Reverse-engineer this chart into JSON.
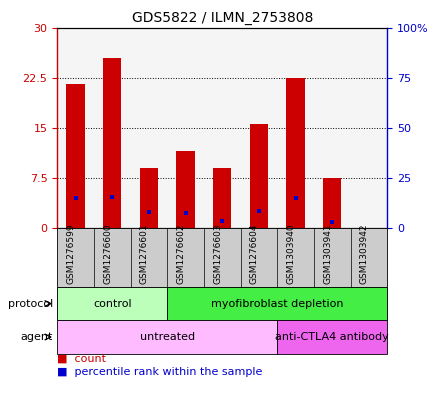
{
  "title": "GDS5822 / ILMN_2753808",
  "samples": [
    "GSM1276599",
    "GSM1276600",
    "GSM1276601",
    "GSM1276602",
    "GSM1276603",
    "GSM1276604",
    "GSM1303940",
    "GSM1303941",
    "GSM1303942"
  ],
  "counts": [
    21.5,
    25.5,
    9.0,
    11.5,
    9.0,
    15.5,
    22.5,
    7.5,
    0.0
  ],
  "percentiles": [
    15.0,
    15.5,
    8.0,
    7.5,
    3.5,
    8.5,
    15.0,
    3.0,
    0.0
  ],
  "ylim_left": [
    0,
    30
  ],
  "ylim_right": [
    0,
    100
  ],
  "yticks_left": [
    0,
    7.5,
    15,
    22.5,
    30
  ],
  "ytick_labels_left": [
    "0",
    "7.5",
    "15",
    "22.5",
    "30"
  ],
  "yticks_right": [
    0,
    25,
    50,
    75,
    100
  ],
  "ytick_labels_right": [
    "0",
    "25",
    "50",
    "75",
    "100%"
  ],
  "gridlines": [
    7.5,
    15,
    22.5
  ],
  "bar_color": "#cc0000",
  "percentile_color": "#0000cc",
  "bar_width": 0.5,
  "protocol_groups": [
    {
      "label": "control",
      "start": 0,
      "end": 3,
      "color": "#bbffbb"
    },
    {
      "label": "myofibroblast depletion",
      "start": 3,
      "end": 9,
      "color": "#44ee44"
    }
  ],
  "agent_groups": [
    {
      "label": "untreated",
      "start": 0,
      "end": 6,
      "color": "#ffbbff"
    },
    {
      "label": "anti-CTLA4 antibody",
      "start": 6,
      "end": 9,
      "color": "#ee66ee"
    }
  ],
  "legend_count_color": "#cc0000",
  "legend_percentile_color": "#0000cc",
  "axis_label_color_left": "#cc0000",
  "axis_label_color_right": "#0000cc",
  "sample_box_color": "#cccccc",
  "plot_bg": "#f5f5f5"
}
